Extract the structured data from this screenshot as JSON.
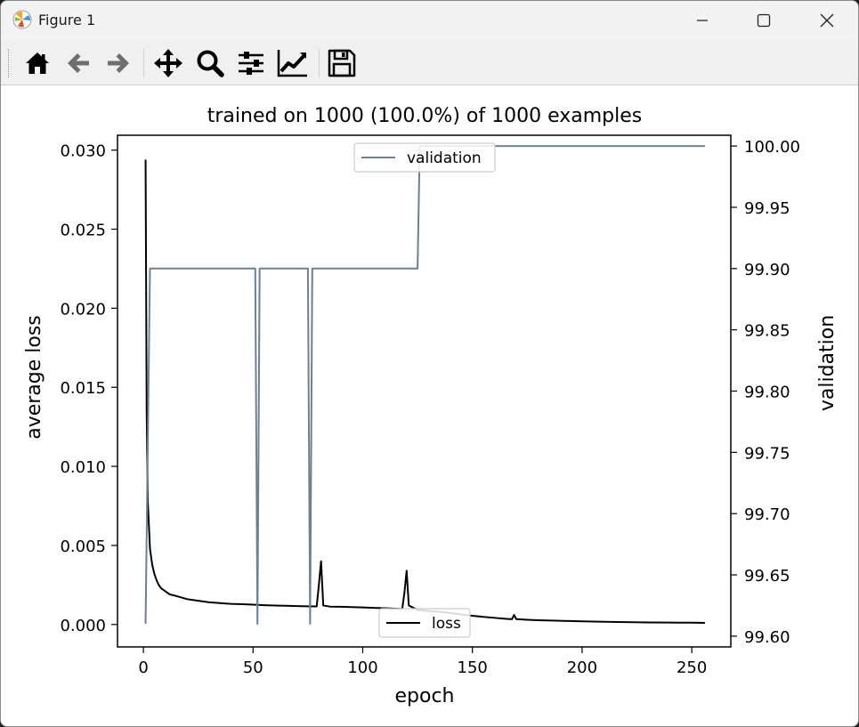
{
  "window": {
    "title": "Figure 1",
    "minimize_label": "Minimize",
    "maximize_label": "Maximize",
    "close_label": "Close"
  },
  "toolbar": {
    "buttons": [
      {
        "icon": "home-icon",
        "label": "Home"
      },
      {
        "icon": "back-arrow-icon",
        "label": "Back"
      },
      {
        "icon": "forward-arrow-icon",
        "label": "Forward"
      },
      {
        "icon": "pan-icon",
        "label": "Pan"
      },
      {
        "icon": "zoom-icon",
        "label": "Zoom"
      },
      {
        "icon": "subplots-icon",
        "label": "Configure subplots"
      },
      {
        "icon": "edit-axis-icon",
        "label": "Edit axis"
      },
      {
        "icon": "save-icon",
        "label": "Save"
      }
    ]
  },
  "chart_data": {
    "type": "line",
    "title": "trained on 1000 (100.0%) of 1000 examples",
    "xlabel": "epoch",
    "ylabel": "average loss",
    "y2label": "validation",
    "xlim": [
      -11.8,
      267.8
    ],
    "ylim": [
      -0.00142,
      0.03094
    ],
    "y2lim": [
      99.5912,
      100.0088
    ],
    "xticks": [
      0,
      50,
      100,
      150,
      200,
      250
    ],
    "yticks": [
      "0.000",
      "0.005",
      "0.010",
      "0.015",
      "0.020",
      "0.025",
      "0.030"
    ],
    "y2ticks": [
      "99.60",
      "99.65",
      "99.70",
      "99.75",
      "99.80",
      "99.85",
      "99.90",
      "99.95",
      "100.00"
    ],
    "grid": false,
    "legends": [
      {
        "axis": "right",
        "placement": "upper center",
        "entry": "validation"
      },
      {
        "axis": "left",
        "placement": "lower center",
        "entry": "loss"
      }
    ],
    "series": [
      {
        "name": "loss",
        "axis": "left",
        "color": "#000000",
        "points": [
          [
            1,
            0.0294
          ],
          [
            1.5,
            0.0135
          ],
          [
            2,
            0.0078
          ],
          [
            3,
            0.0048
          ],
          [
            4,
            0.0038
          ],
          [
            5,
            0.0032
          ],
          [
            6,
            0.0028
          ],
          [
            7,
            0.0025
          ],
          [
            8,
            0.0023
          ],
          [
            10,
            0.0021
          ],
          [
            12,
            0.0019
          ],
          [
            15,
            0.0018
          ],
          [
            20,
            0.0016
          ],
          [
            25,
            0.0015
          ],
          [
            30,
            0.0014
          ],
          [
            35,
            0.00135
          ],
          [
            40,
            0.0013
          ],
          [
            45,
            0.00128
          ],
          [
            50,
            0.00125
          ],
          [
            55,
            0.00122
          ],
          [
            60,
            0.0012
          ],
          [
            65,
            0.00118
          ],
          [
            70,
            0.00116
          ],
          [
            75,
            0.00115
          ],
          [
            79,
            0.00114
          ],
          [
            80,
            0.0025
          ],
          [
            81,
            0.004
          ],
          [
            82,
            0.0012
          ],
          [
            85,
            0.00113
          ],
          [
            90,
            0.00112
          ],
          [
            95,
            0.0011
          ],
          [
            100,
            0.00108
          ],
          [
            105,
            0.00105
          ],
          [
            110,
            0.00103
          ],
          [
            115,
            0.001
          ],
          [
            118,
            0.00098
          ],
          [
            119,
            0.002
          ],
          [
            120,
            0.0034
          ],
          [
            121,
            0.0012
          ],
          [
            125,
            0.00092
          ],
          [
            130,
            0.00085
          ],
          [
            135,
            0.0008
          ],
          [
            140,
            0.00072
          ],
          [
            145,
            0.00063
          ],
          [
            150,
            0.00055
          ],
          [
            155,
            0.00048
          ],
          [
            160,
            0.00042
          ],
          [
            165,
            0.00036
          ],
          [
            168,
            0.00033
          ],
          [
            169,
            0.0006
          ],
          [
            170,
            0.00034
          ],
          [
            175,
            0.0003
          ],
          [
            180,
            0.00027
          ],
          [
            190,
            0.00023
          ],
          [
            200,
            0.0002
          ],
          [
            210,
            0.00017
          ],
          [
            220,
            0.00015
          ],
          [
            230,
            0.00013
          ],
          [
            240,
            0.00012
          ],
          [
            250,
            0.00011
          ],
          [
            256,
            0.0001
          ]
        ]
      },
      {
        "name": "validation",
        "axis": "right",
        "color": "#708090",
        "points": [
          [
            1,
            99.61
          ],
          [
            3,
            99.9
          ],
          [
            51,
            99.9
          ],
          [
            52,
            99.61
          ],
          [
            53,
            99.9
          ],
          [
            75,
            99.9
          ],
          [
            76,
            99.61
          ],
          [
            77,
            99.9
          ],
          [
            125,
            99.9
          ],
          [
            126,
            100.0
          ],
          [
            256,
            100.0
          ]
        ]
      }
    ]
  }
}
